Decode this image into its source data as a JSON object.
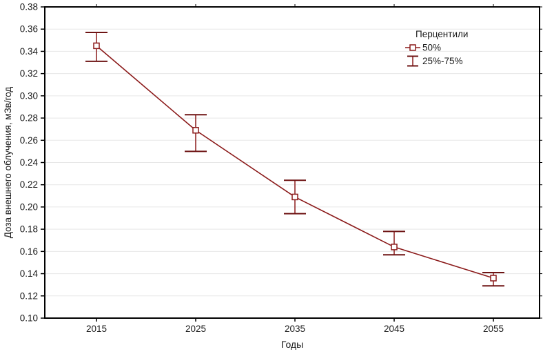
{
  "chart_data": {
    "type": "line",
    "title": "",
    "xlabel": "Годы",
    "ylabel": "Доза внешнего облучения, мЗв/год",
    "x": [
      2015,
      2025,
      2035,
      2045,
      2055
    ],
    "xticks": [
      "2015",
      "2025",
      "2035",
      "2045",
      "2055"
    ],
    "yticks": [
      "0.10",
      "0.12",
      "0.14",
      "0.16",
      "0.18",
      "0.20",
      "0.22",
      "0.24",
      "0.26",
      "0.28",
      "0.30",
      "0.32",
      "0.34",
      "0.36",
      "0.38"
    ],
    "ylim": [
      0.1,
      0.38
    ],
    "ytick_step": 0.02,
    "grid": "horizontal",
    "series": [
      {
        "name": "50%",
        "values": [
          0.345,
          0.269,
          0.209,
          0.164,
          0.136
        ],
        "p25": [
          0.331,
          0.25,
          0.194,
          0.157,
          0.129
        ],
        "p75": [
          0.357,
          0.283,
          0.224,
          0.178,
          0.141
        ]
      }
    ],
    "legend": {
      "position": "top-right",
      "title": "Перцентили",
      "items": [
        {
          "glyph": "square-marker-icon",
          "label": "50%"
        },
        {
          "glyph": "error-bar-icon",
          "label": "25%-75%"
        }
      ]
    },
    "colors": {
      "series": "#8B1A1A",
      "error_cap": "#6E1414",
      "grid": "#e7e7e7",
      "frame": "#000000",
      "text": "#1a1a1a"
    }
  }
}
